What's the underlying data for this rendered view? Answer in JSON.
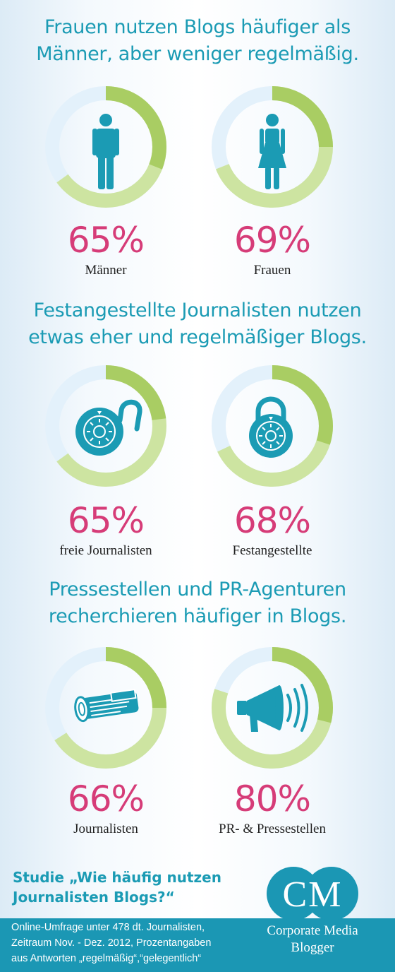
{
  "colors": {
    "teal": "#1b9bb4",
    "pink": "#d63c78",
    "green_dark": "#a9cd63",
    "green_light": "#cde4a1",
    "ring_bg": "#e3f1fb"
  },
  "sections": [
    {
      "title_lines": [
        "Frauen nutzen Blogs häufiger als",
        "Männer, aber weniger regelmäßig."
      ]
    },
    {
      "title_lines": [
        "Festangestellte Journalisten nutzen",
        "etwas eher und regelmäßiger Blogs."
      ]
    },
    {
      "title_lines": [
        "Pressestellen und PR-Agenturen",
        "recherchieren häufiger in Blogs."
      ]
    }
  ],
  "chart_data": [
    {
      "type": "pie",
      "title": "Frauen nutzen Blogs häufiger als Männer, aber weniger regelmäßig.",
      "unit": "%",
      "items": [
        {
          "name": "Männer",
          "value": 65,
          "value_label": "65%",
          "icon": "man-icon",
          "regular_share": 31
        },
        {
          "name": "Frauen",
          "value": 69,
          "value_label": "69%",
          "icon": "woman-icon",
          "regular_share": 25
        }
      ]
    },
    {
      "type": "pie",
      "title": "Festangestellte Journalisten nutzen etwas eher und regelmäßiger Blogs.",
      "unit": "%",
      "items": [
        {
          "name": "freie Journalisten",
          "value": 65,
          "value_label": "65%",
          "icon": "open-padlock-icon",
          "regular_share": 23
        },
        {
          "name": "Festangestellte",
          "value": 68,
          "value_label": "68%",
          "icon": "padlock-icon",
          "regular_share": 30
        }
      ]
    },
    {
      "type": "pie",
      "title": "Pressestellen und PR-Agenturen recherchieren häufiger in Blogs.",
      "unit": "%",
      "items": [
        {
          "name": "Journalisten",
          "value": 66,
          "value_label": "66%",
          "icon": "newspaper-icon",
          "regular_share": 25
        },
        {
          "name": "PR- & Pressestellen",
          "value": 80,
          "value_label": "80%",
          "icon": "megaphone-icon",
          "regular_share": 29
        }
      ]
    }
  ],
  "study": {
    "lines": [
      "Studie „Wie häufig nutzen",
      "Journalisten Blogs?“"
    ]
  },
  "footer": {
    "lines": [
      "Online-Umfrage unter 478 dt. Journalisten,",
      "Zeitraum Nov. - Dez. 2012, Prozentangaben",
      "aus Antworten „regelmäßig“,“gelegentlich“"
    ]
  },
  "logo": {
    "letters": "CM",
    "lines": [
      "Corporate Media",
      "Blogger"
    ]
  }
}
